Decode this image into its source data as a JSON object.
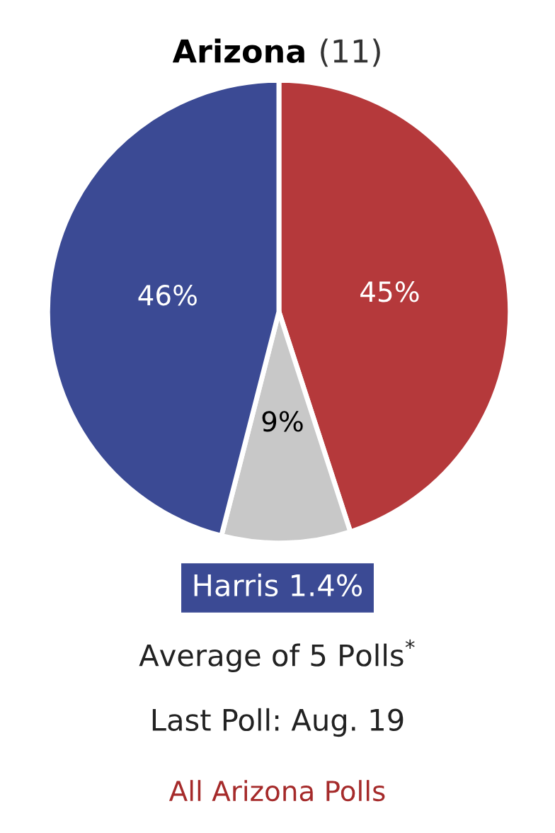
{
  "chart_data": {
    "type": "pie",
    "title": "Arizona (11)",
    "categories": [
      null,
      null,
      null
    ],
    "values": [
      45,
      9,
      46
    ],
    "colors": [
      "#b5393b",
      "#c8c8c8",
      "#3b4a94"
    ],
    "value_labels": [
      "45%",
      "9%",
      "46%"
    ],
    "annotations": [
      "Harris 1.4%",
      "Average of 5 Polls$^{*}$",
      "Last Poll: Aug. 19",
      "All Arizona Polls"
    ]
  }
}
